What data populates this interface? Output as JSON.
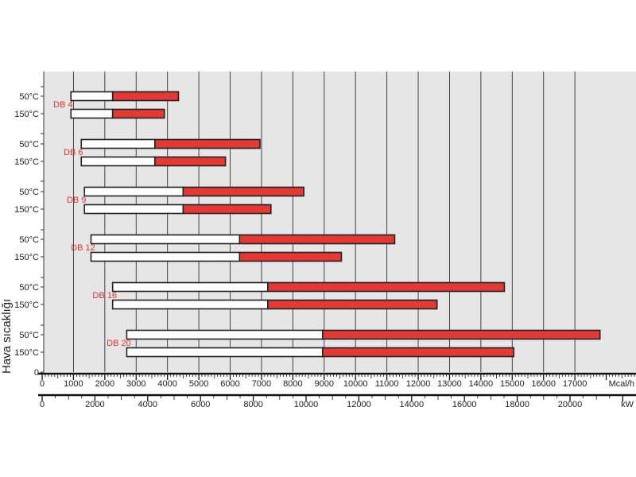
{
  "chart_data": {
    "type": "bar",
    "ylabel": "Hava sıcaklığı",
    "axis_mcal": {
      "unit": "Mcal/h",
      "ticks": [
        0,
        1000,
        2000,
        3000,
        4000,
        5000,
        6000,
        7000,
        8000,
        9000,
        10000,
        11000,
        12000,
        13000,
        14000,
        15000,
        16000,
        17000
      ],
      "xlim": [
        0,
        18500
      ]
    },
    "axis_kw": {
      "unit": "kW",
      "ticks": [
        0,
        2000,
        4000,
        6000,
        8000,
        10000,
        12000,
        14000,
        16000,
        18000,
        20000
      ],
      "xlim": [
        0,
        21500
      ]
    },
    "groups": [
      {
        "name": "DB 4",
        "rows": [
          {
            "temp": "50°C",
            "start": 920,
            "mid": 2250,
            "end": 4350
          },
          {
            "temp": "150°C",
            "start": 920,
            "mid": 2250,
            "end": 3900
          }
        ]
      },
      {
        "name": "DB 6",
        "rows": [
          {
            "temp": "50°C",
            "start": 1250,
            "mid": 3600,
            "end": 6950
          },
          {
            "temp": "150°C",
            "start": 1250,
            "mid": 3600,
            "end": 5850
          }
        ]
      },
      {
        "name": "DB 9",
        "rows": [
          {
            "temp": "50°C",
            "start": 1350,
            "mid": 4500,
            "end": 8350
          },
          {
            "temp": "150°C",
            "start": 1350,
            "mid": 4500,
            "end": 7300
          }
        ]
      },
      {
        "name": "DB 12",
        "rows": [
          {
            "temp": "50°C",
            "start": 1560,
            "mid": 6300,
            "end": 11250
          },
          {
            "temp": "150°C",
            "start": 1560,
            "mid": 6300,
            "end": 9550
          }
        ]
      },
      {
        "name": "DB 16",
        "rows": [
          {
            "temp": "50°C",
            "start": 2250,
            "mid": 7200,
            "end": 14750
          },
          {
            "temp": "150°C",
            "start": 2250,
            "mid": 7200,
            "end": 12600
          }
        ]
      },
      {
        "name": "DB 20",
        "rows": [
          {
            "temp": "50°C",
            "start": 2700,
            "mid": 8950,
            "end": 17800
          },
          {
            "temp": "150°C",
            "start": 2700,
            "mid": 8950,
            "end": 15050
          }
        ]
      }
    ],
    "colors": {
      "background": "#e6e6e6",
      "bar_low": "#ffffff",
      "bar_high": "#e53a33",
      "outline": "#222222",
      "label": "#e0332f",
      "grid": "#333333"
    },
    "grid": true
  }
}
